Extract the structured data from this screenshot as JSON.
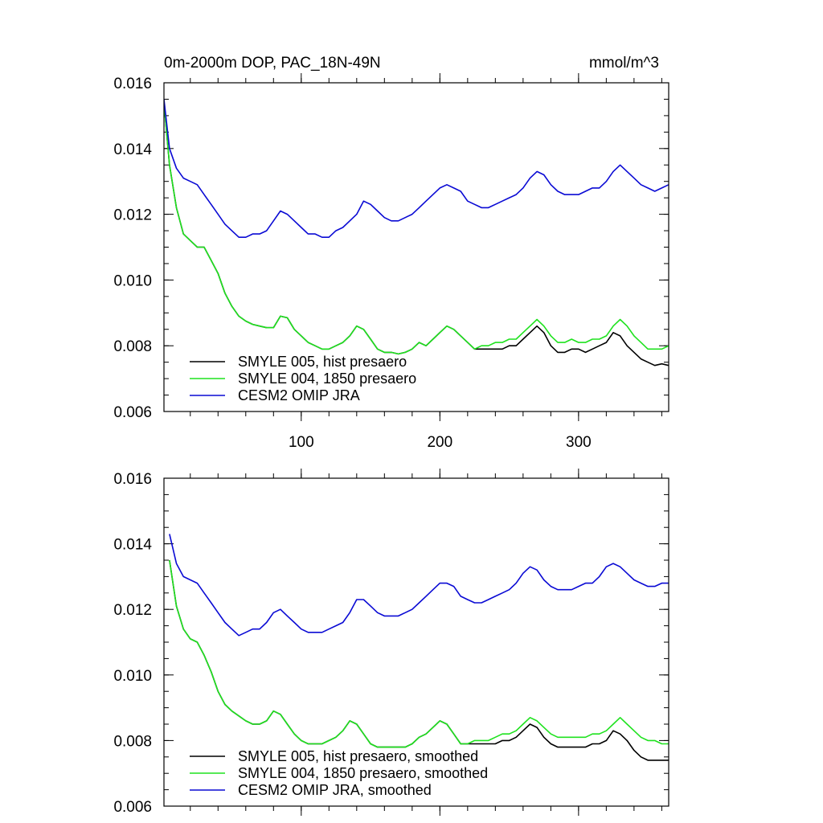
{
  "chart_data": [
    {
      "type": "line",
      "title": "0m-2000m DOP, PAC_18N-49N",
      "units": "mmol/m^3",
      "xlim": [
        1,
        365
      ],
      "ylim": [
        0.006,
        0.016
      ],
      "xticks": [
        100,
        200,
        300
      ],
      "xtick_labels": [
        "100",
        "200",
        "300"
      ],
      "yticks": [
        0.006,
        0.008,
        0.01,
        0.012,
        0.014,
        0.016
      ],
      "ytick_labels": [
        "0.006",
        "0.008",
        "0.010",
        "0.012",
        "0.014",
        "0.016"
      ],
      "legend_position": "bottom-left",
      "series": [
        {
          "name": "SMYLE 005, hist presaero",
          "color": "#000000",
          "x": [
            1,
            5,
            10,
            15,
            20,
            25,
            30,
            35,
            40,
            45,
            50,
            55,
            60,
            65,
            70,
            75,
            80,
            85,
            90,
            95,
            100,
            105,
            110,
            115,
            120,
            125,
            130,
            135,
            140,
            145,
            150,
            155,
            160,
            165,
            170,
            175,
            180,
            185,
            190,
            195,
            200,
            205,
            210,
            215,
            220,
            225,
            230,
            235,
            240,
            245,
            250,
            255,
            260,
            265,
            270,
            275,
            280,
            285,
            290,
            295,
            300,
            305,
            310,
            315,
            320,
            325,
            330,
            335,
            340,
            345,
            350,
            355,
            360,
            365
          ],
          "values": [
            0.0154,
            0.0135,
            0.0122,
            0.0114,
            0.0112,
            0.011,
            0.011,
            0.0106,
            0.0102,
            0.0096,
            0.0092,
            0.0089,
            0.00875,
            0.00865,
            0.0086,
            0.00855,
            0.00855,
            0.0089,
            0.00885,
            0.0085,
            0.0083,
            0.0081,
            0.008,
            0.0079,
            0.0079,
            0.008,
            0.0081,
            0.0083,
            0.0086,
            0.0085,
            0.0082,
            0.0079,
            0.0078,
            0.0078,
            0.00775,
            0.0078,
            0.0079,
            0.0081,
            0.008,
            0.0082,
            0.0084,
            0.0086,
            0.0085,
            0.0083,
            0.0081,
            0.0079,
            0.0079,
            0.0079,
            0.0079,
            0.0079,
            0.008,
            0.008,
            0.0082,
            0.0084,
            0.0086,
            0.0084,
            0.008,
            0.0078,
            0.0078,
            0.0079,
            0.0079,
            0.0078,
            0.0079,
            0.008,
            0.0081,
            0.0084,
            0.0083,
            0.008,
            0.0078,
            0.0076,
            0.0075,
            0.0074,
            0.00745,
            0.0074
          ]
        },
        {
          "name": "SMYLE 004, 1850 presaero",
          "color": "#1fe21f",
          "x": [
            1,
            5,
            10,
            15,
            20,
            25,
            30,
            35,
            40,
            45,
            50,
            55,
            60,
            65,
            70,
            75,
            80,
            85,
            90,
            95,
            100,
            105,
            110,
            115,
            120,
            125,
            130,
            135,
            140,
            145,
            150,
            155,
            160,
            165,
            170,
            175,
            180,
            185,
            190,
            195,
            200,
            205,
            210,
            215,
            220,
            225,
            230,
            235,
            240,
            245,
            250,
            255,
            260,
            265,
            270,
            275,
            280,
            285,
            290,
            295,
            300,
            305,
            310,
            315,
            320,
            325,
            330,
            335,
            340,
            345,
            350,
            355,
            360,
            365
          ],
          "values": [
            0.0154,
            0.0135,
            0.0122,
            0.0114,
            0.0112,
            0.011,
            0.011,
            0.0106,
            0.0102,
            0.0096,
            0.0092,
            0.0089,
            0.00875,
            0.00865,
            0.0086,
            0.00855,
            0.00855,
            0.0089,
            0.00885,
            0.0085,
            0.0083,
            0.0081,
            0.008,
            0.0079,
            0.0079,
            0.008,
            0.0081,
            0.0083,
            0.0086,
            0.0085,
            0.0082,
            0.0079,
            0.0078,
            0.0078,
            0.00775,
            0.0078,
            0.0079,
            0.0081,
            0.008,
            0.0082,
            0.0084,
            0.0086,
            0.0085,
            0.0083,
            0.0081,
            0.0079,
            0.008,
            0.008,
            0.0081,
            0.0081,
            0.0082,
            0.0082,
            0.0084,
            0.0086,
            0.0088,
            0.0086,
            0.0083,
            0.0081,
            0.0081,
            0.0082,
            0.0081,
            0.0081,
            0.0082,
            0.0082,
            0.0083,
            0.0086,
            0.0088,
            0.0086,
            0.0083,
            0.0081,
            0.0079,
            0.0079,
            0.0079,
            0.008
          ]
        },
        {
          "name": "CESM2 OMIP JRA",
          "color": "#0a0ad4",
          "x": [
            1,
            5,
            10,
            15,
            20,
            25,
            30,
            35,
            40,
            45,
            50,
            55,
            60,
            65,
            70,
            75,
            80,
            85,
            90,
            95,
            100,
            105,
            110,
            115,
            120,
            125,
            130,
            135,
            140,
            145,
            150,
            155,
            160,
            165,
            170,
            175,
            180,
            185,
            190,
            195,
            200,
            205,
            210,
            215,
            220,
            225,
            230,
            235,
            240,
            245,
            250,
            255,
            260,
            265,
            270,
            275,
            280,
            285,
            290,
            295,
            300,
            305,
            310,
            315,
            320,
            325,
            330,
            335,
            340,
            345,
            350,
            355,
            360,
            365
          ],
          "values": [
            0.0155,
            0.014,
            0.0134,
            0.0131,
            0.013,
            0.0129,
            0.0126,
            0.0123,
            0.012,
            0.0117,
            0.0115,
            0.0113,
            0.0113,
            0.0114,
            0.0114,
            0.0115,
            0.0118,
            0.0121,
            0.012,
            0.0118,
            0.0116,
            0.0114,
            0.0114,
            0.0113,
            0.0113,
            0.0115,
            0.0116,
            0.0118,
            0.012,
            0.0124,
            0.0123,
            0.0121,
            0.0119,
            0.0118,
            0.0118,
            0.0119,
            0.012,
            0.0122,
            0.0124,
            0.0126,
            0.0128,
            0.0129,
            0.0128,
            0.0127,
            0.0124,
            0.0123,
            0.0122,
            0.0122,
            0.0123,
            0.0124,
            0.0125,
            0.0126,
            0.0128,
            0.0131,
            0.0133,
            0.0132,
            0.0129,
            0.0127,
            0.0126,
            0.0126,
            0.0126,
            0.0127,
            0.0128,
            0.0128,
            0.013,
            0.0133,
            0.0135,
            0.0133,
            0.0131,
            0.0129,
            0.0128,
            0.0127,
            0.0128,
            0.0129
          ]
        }
      ]
    },
    {
      "type": "line",
      "title": "",
      "xlim": [
        1,
        365
      ],
      "ylim": [
        0.006,
        0.016
      ],
      "xticks": [
        100,
        200,
        300
      ],
      "xtick_labels": [],
      "yticks": [
        0.006,
        0.008,
        0.01,
        0.012,
        0.014,
        0.016
      ],
      "ytick_labels": [
        "0.006",
        "0.008",
        "0.010",
        "0.012",
        "0.014",
        "0.016"
      ],
      "legend_position": "bottom-left",
      "series": [
        {
          "name": "SMYLE 005, hist presaero, smoothed",
          "color": "#000000",
          "x": [
            5,
            10,
            15,
            20,
            25,
            30,
            35,
            40,
            45,
            50,
            55,
            60,
            65,
            70,
            75,
            80,
            85,
            90,
            95,
            100,
            105,
            110,
            115,
            120,
            125,
            130,
            135,
            140,
            145,
            150,
            155,
            160,
            165,
            170,
            175,
            180,
            185,
            190,
            195,
            200,
            205,
            210,
            215,
            220,
            225,
            230,
            235,
            240,
            245,
            250,
            255,
            260,
            265,
            270,
            275,
            280,
            285,
            290,
            295,
            300,
            305,
            310,
            315,
            320,
            325,
            330,
            335,
            340,
            345,
            350,
            355,
            360,
            365
          ],
          "values": [
            0.0135,
            0.0121,
            0.0114,
            0.0111,
            0.011,
            0.0106,
            0.0101,
            0.0095,
            0.0091,
            0.0089,
            0.00875,
            0.0086,
            0.0085,
            0.0085,
            0.0086,
            0.0089,
            0.0088,
            0.0085,
            0.0082,
            0.008,
            0.0079,
            0.0079,
            0.0079,
            0.008,
            0.0081,
            0.0083,
            0.0086,
            0.0085,
            0.0082,
            0.0079,
            0.0078,
            0.0078,
            0.0078,
            0.0078,
            0.0078,
            0.0079,
            0.0081,
            0.0082,
            0.0084,
            0.0086,
            0.0085,
            0.0082,
            0.0079,
            0.0079,
            0.0079,
            0.0079,
            0.0079,
            0.0079,
            0.008,
            0.008,
            0.0081,
            0.0083,
            0.0085,
            0.0084,
            0.0081,
            0.0079,
            0.0078,
            0.0078,
            0.0078,
            0.0078,
            0.0078,
            0.0079,
            0.0079,
            0.008,
            0.0083,
            0.0082,
            0.008,
            0.0077,
            0.0075,
            0.0074,
            0.0074,
            0.0074,
            0.0074
          ]
        },
        {
          "name": "SMYLE 004, 1850 presaero, smoothed",
          "color": "#1fe21f",
          "x": [
            5,
            10,
            15,
            20,
            25,
            30,
            35,
            40,
            45,
            50,
            55,
            60,
            65,
            70,
            75,
            80,
            85,
            90,
            95,
            100,
            105,
            110,
            115,
            120,
            125,
            130,
            135,
            140,
            145,
            150,
            155,
            160,
            165,
            170,
            175,
            180,
            185,
            190,
            195,
            200,
            205,
            210,
            215,
            220,
            225,
            230,
            235,
            240,
            245,
            250,
            255,
            260,
            265,
            270,
            275,
            280,
            285,
            290,
            295,
            300,
            305,
            310,
            315,
            320,
            325,
            330,
            335,
            340,
            345,
            350,
            355,
            360,
            365
          ],
          "values": [
            0.0135,
            0.0121,
            0.0114,
            0.0111,
            0.011,
            0.0106,
            0.0101,
            0.0095,
            0.0091,
            0.0089,
            0.00875,
            0.0086,
            0.0085,
            0.0085,
            0.0086,
            0.0089,
            0.0088,
            0.0085,
            0.0082,
            0.008,
            0.0079,
            0.0079,
            0.0079,
            0.008,
            0.0081,
            0.0083,
            0.0086,
            0.0085,
            0.0082,
            0.0079,
            0.0078,
            0.0078,
            0.0078,
            0.0078,
            0.0078,
            0.0079,
            0.0081,
            0.0082,
            0.0084,
            0.0086,
            0.0085,
            0.0082,
            0.0079,
            0.0079,
            0.008,
            0.008,
            0.008,
            0.0081,
            0.0082,
            0.0082,
            0.0083,
            0.0085,
            0.0087,
            0.0086,
            0.0084,
            0.0082,
            0.0081,
            0.0081,
            0.0081,
            0.0081,
            0.0081,
            0.0082,
            0.0082,
            0.0083,
            0.0085,
            0.0087,
            0.0085,
            0.0083,
            0.0081,
            0.008,
            0.008,
            0.0079,
            0.0079
          ]
        },
        {
          "name": "CESM2 OMIP JRA, smoothed",
          "color": "#0a0ad4",
          "x": [
            5,
            10,
            15,
            20,
            25,
            30,
            35,
            40,
            45,
            50,
            55,
            60,
            65,
            70,
            75,
            80,
            85,
            90,
            95,
            100,
            105,
            110,
            115,
            120,
            125,
            130,
            135,
            140,
            145,
            150,
            155,
            160,
            165,
            170,
            175,
            180,
            185,
            190,
            195,
            200,
            205,
            210,
            215,
            220,
            225,
            230,
            235,
            240,
            245,
            250,
            255,
            260,
            265,
            270,
            275,
            280,
            285,
            290,
            295,
            300,
            305,
            310,
            315,
            320,
            325,
            330,
            335,
            340,
            345,
            350,
            355,
            360,
            365
          ],
          "values": [
            0.0143,
            0.0134,
            0.013,
            0.0129,
            0.0128,
            0.0125,
            0.0122,
            0.0119,
            0.0116,
            0.0114,
            0.0112,
            0.0113,
            0.0114,
            0.0114,
            0.0116,
            0.0119,
            0.012,
            0.0118,
            0.0116,
            0.0114,
            0.0113,
            0.0113,
            0.0113,
            0.0114,
            0.0115,
            0.0116,
            0.0119,
            0.0123,
            0.0123,
            0.0121,
            0.0119,
            0.0118,
            0.0118,
            0.0118,
            0.0119,
            0.012,
            0.0122,
            0.0124,
            0.0126,
            0.0128,
            0.0128,
            0.0127,
            0.0124,
            0.0123,
            0.0122,
            0.0122,
            0.0123,
            0.0124,
            0.0125,
            0.0126,
            0.0128,
            0.0131,
            0.0133,
            0.0132,
            0.0129,
            0.0127,
            0.0126,
            0.0126,
            0.0126,
            0.0127,
            0.0128,
            0.0128,
            0.013,
            0.0133,
            0.0134,
            0.0133,
            0.0131,
            0.0129,
            0.0128,
            0.0127,
            0.0127,
            0.0128,
            0.0128
          ]
        }
      ]
    }
  ]
}
